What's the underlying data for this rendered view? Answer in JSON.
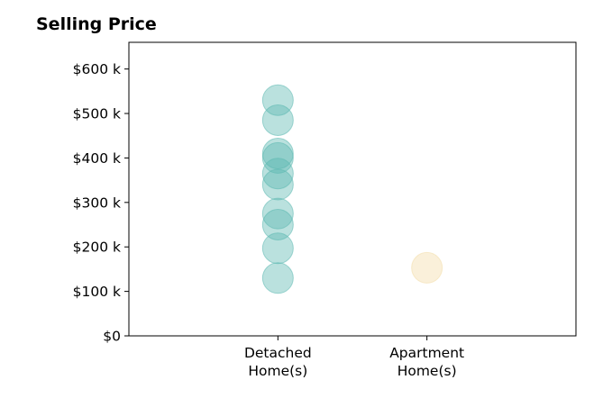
{
  "chart_data": {
    "type": "scatter",
    "title": "Selling Price",
    "xlabel": "",
    "ylabel": "",
    "categories": [
      [
        "Detached",
        "Home(s)"
      ],
      [
        "Apartment",
        "Home(s)"
      ]
    ],
    "y_ticks": [
      {
        "value": 0,
        "label": "$0"
      },
      {
        "value": 100000,
        "label": "$100 k"
      },
      {
        "value": 200000,
        "label": "$200 k"
      },
      {
        "value": 300000,
        "label": "$300 k"
      },
      {
        "value": 400000,
        "label": "$400 k"
      },
      {
        "value": 500000,
        "label": "$500 k"
      },
      {
        "value": 600000,
        "label": "$600 k"
      }
    ],
    "ylim": [
      0,
      660000
    ],
    "x_range": [
      -1,
      2
    ],
    "grid": false,
    "series": [
      {
        "category_index": 0,
        "color": "#5bb8b0",
        "values": [
          130000,
          197000,
          250000,
          275000,
          340000,
          365000,
          400000,
          410000,
          485000,
          530000
        ]
      },
      {
        "category_index": 1,
        "color": "#f3dca8",
        "values": [
          153000
        ]
      }
    ]
  }
}
